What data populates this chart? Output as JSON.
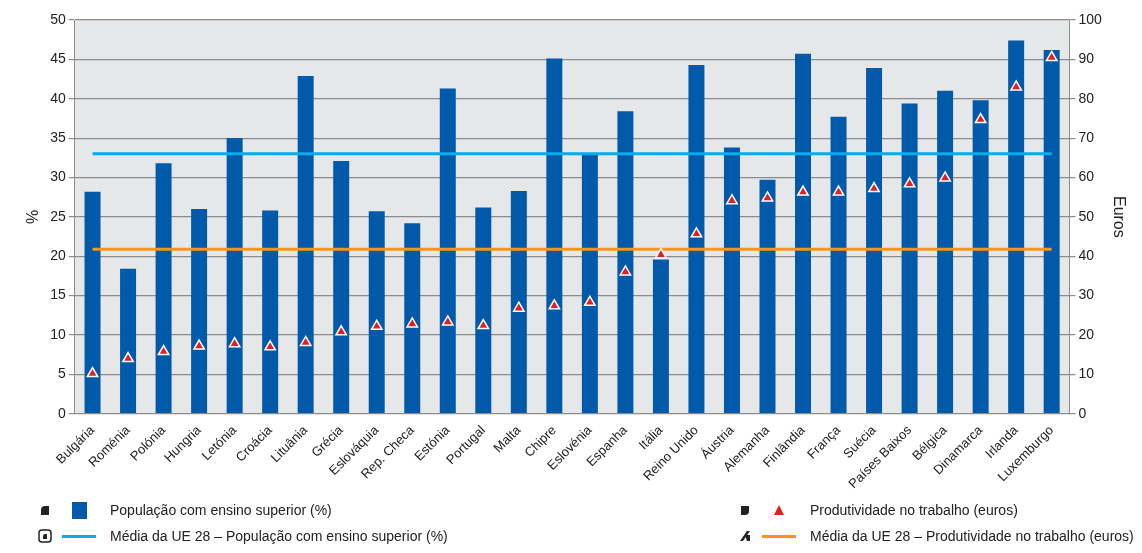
{
  "chart_data": {
    "type": "bar",
    "categories": [
      "Bulgária",
      "Roménia",
      "Polónia",
      "Hungria",
      "Letónia",
      "Croácia",
      "Lituânia",
      "Grécia",
      "Eslováquia",
      "Rep. Checa",
      "Estónia",
      "Portugal",
      "Malta",
      "Chipre",
      "Eslovénia",
      "Espanha",
      "Itália",
      "Reino Unido",
      "Áustria",
      "Alemanha",
      "Finlândia",
      "França",
      "Suécia",
      "Países Baixos",
      "Bélgica",
      "Dinamarca",
      "Irlanda",
      "Luxemburgo"
    ],
    "series": [
      {
        "name": "População com ensino superior (%)",
        "color": "#005aa9",
        "values": [
          28.2,
          18.4,
          31.8,
          26.0,
          35.0,
          25.8,
          42.9,
          32.1,
          25.7,
          24.2,
          41.3,
          26.2,
          28.3,
          45.1,
          33.1,
          38.4,
          19.6,
          44.3,
          33.8,
          29.7,
          45.7,
          37.7,
          43.9,
          39.4,
          41.0,
          39.8,
          47.4,
          46.2
        ]
      },
      {
        "name": "Produtividade no trabalho (euros)",
        "type": "scatter",
        "axis": "y2",
        "marker": "triangle",
        "color": "#e31e24",
        "values": [
          10.2,
          14,
          15.8,
          17.2,
          17.8,
          17,
          18.1,
          20.8,
          22.2,
          22.8,
          23.3,
          22.4,
          26.8,
          27.4,
          28.3,
          36,
          40.4,
          45.7,
          54.1,
          54.8,
          56.3,
          56.3,
          57.2,
          58.4,
          59.9,
          74.7,
          83,
          90.5
        ]
      },
      {
        "name": "Média da UE 28 – População com ensino superior (%)",
        "type": "line",
        "marker": "none",
        "color": "#00aeef",
        "values": [
          33,
          33,
          33,
          33,
          33,
          33,
          33,
          33,
          33,
          33,
          33,
          33,
          33,
          33,
          33,
          33,
          33,
          33,
          33,
          33,
          33,
          33,
          33,
          33,
          33,
          33,
          33,
          33
        ]
      },
      {
        "name": "Média da UE 28 – Produtividade no trabalho (euros)",
        "type": "line",
        "axis": "y2",
        "marker": "none",
        "color": "#f7941d",
        "values": [
          41.8,
          41.8,
          41.8,
          41.8,
          41.8,
          41.8,
          41.8,
          41.8,
          41.8,
          41.8,
          41.8,
          41.8,
          41.8,
          41.8,
          41.8,
          41.8,
          41.8,
          41.8,
          41.8,
          41.8,
          41.8,
          41.8,
          41.8,
          41.8,
          41.8,
          41.8,
          41.8,
          41.8
        ]
      }
    ],
    "ylabel": "%",
    "y2label": "Euros",
    "ylim": [
      0,
      50
    ],
    "yticks": [
      0,
      5,
      10,
      15,
      20,
      25,
      30,
      35,
      40,
      45,
      50
    ],
    "y2lim": [
      0,
      100
    ],
    "y2ticks": [
      0,
      10,
      20,
      30,
      40,
      50,
      60,
      70,
      80,
      90,
      100
    ],
    "grid": "y",
    "legend": "bottom"
  }
}
